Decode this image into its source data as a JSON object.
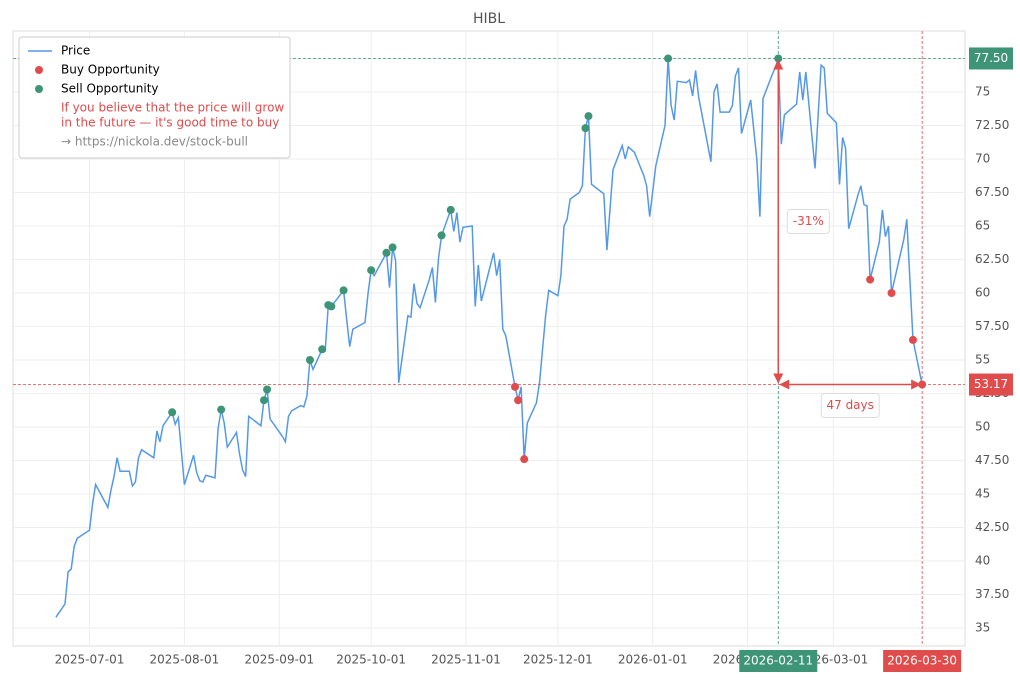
{
  "chart_data": {
    "type": "line",
    "title": "HIBL",
    "xlim": [
      "2025-06-06",
      "2026-04-13"
    ],
    "ylim": [
      33.66,
      79.55
    ],
    "xticks": [
      "2025-07-01",
      "2025-08-01",
      "2025-09-01",
      "2025-10-01",
      "2025-11-01",
      "2025-12-01",
      "2026-01-01",
      "2026-02-01",
      "2026-03-01"
    ],
    "yticks": [
      35,
      {
        "value": 37.5,
        "label": "37.50"
      },
      40,
      {
        "value": 42.5,
        "label": "42.50"
      },
      45,
      {
        "value": 47.5,
        "label": "47.50"
      },
      50,
      {
        "value": 52.5,
        "label": "52.50"
      },
      55,
      {
        "value": 57.5,
        "label": "57.50"
      },
      60,
      {
        "value": 62.5,
        "label": "62.50"
      },
      65,
      {
        "value": 67.5,
        "label": "67.50"
      },
      70,
      {
        "value": 72.5,
        "label": "72.50"
      },
      75,
      {
        "value": 77.5,
        "label": "77.50"
      }
    ],
    "grid": true,
    "legend": "upper left",
    "legend_note": [
      "If you believe that the price will grow",
      "in the future — it's good time to buy"
    ],
    "legend_link": "→ https://nickola.dev/stock-bull",
    "series": [
      {
        "name": "Price",
        "type": "line",
        "color": "#5599e6",
        "x": [
          "2025-06-20",
          "2025-06-23",
          "2025-06-24",
          "2025-06-25",
          "2025-06-26",
          "2025-06-27",
          "2025-07-01",
          "2025-07-02",
          "2025-07-03",
          "2025-07-07",
          "2025-07-08",
          "2025-07-09",
          "2025-07-10",
          "2025-07-11",
          "2025-07-14",
          "2025-07-15",
          "2025-07-16",
          "2025-07-17",
          "2025-07-18",
          "2025-07-22",
          "2025-07-23",
          "2025-07-24",
          "2025-07-25",
          "2025-07-28",
          "2025-07-29",
          "2025-07-30",
          "2025-08-01",
          "2025-08-04",
          "2025-08-05",
          "2025-08-06",
          "2025-08-07",
          "2025-08-08",
          "2025-08-11",
          "2025-08-12",
          "2025-08-13",
          "2025-08-14",
          "2025-08-15",
          "2025-08-18",
          "2025-08-19",
          "2025-08-20",
          "2025-08-21",
          "2025-08-22",
          "2025-08-26",
          "2025-08-27",
          "2025-08-28",
          "2025-08-29",
          "2025-09-02",
          "2025-09-03",
          "2025-09-04",
          "2025-09-05",
          "2025-09-08",
          "2025-09-09",
          "2025-09-10",
          "2025-09-11",
          "2025-09-12",
          "2025-09-15",
          "2025-09-16",
          "2025-09-17",
          "2025-09-18",
          "2025-09-22",
          "2025-09-23",
          "2025-09-24",
          "2025-09-25",
          "2025-09-29",
          "2025-09-30",
          "2025-10-01",
          "2025-10-02",
          "2025-10-06",
          "2025-10-07",
          "2025-10-08",
          "2025-10-09",
          "2025-10-10",
          "2025-10-13",
          "2025-10-14",
          "2025-10-15",
          "2025-10-16",
          "2025-10-17",
          "2025-10-20",
          "2025-10-21",
          "2025-10-22",
          "2025-10-23",
          "2025-10-24",
          "2025-10-27",
          "2025-10-28",
          "2025-10-29",
          "2025-10-30",
          "2025-10-31",
          "2025-11-03",
          "2025-11-04",
          "2025-11-05",
          "2025-11-06",
          "2025-11-07",
          "2025-11-10",
          "2025-11-11",
          "2025-11-12",
          "2025-11-13",
          "2025-11-14",
          "2025-11-17",
          "2025-11-18",
          "2025-11-19",
          "2025-11-20",
          "2025-11-21",
          "2025-11-24",
          "2025-11-25",
          "2025-11-27",
          "2025-11-28",
          "2025-12-01",
          "2025-12-02",
          "2025-12-03",
          "2025-12-04",
          "2025-12-05",
          "2025-12-08",
          "2025-12-09",
          "2025-12-10",
          "2025-12-11",
          "2025-12-12",
          "2025-12-16",
          "2025-12-17",
          "2025-12-19",
          "2025-12-22",
          "2025-12-23",
          "2025-12-24",
          "2025-12-26",
          "2025-12-29",
          "2025-12-30",
          "2025-12-31",
          "2026-01-02",
          "2026-01-05",
          "2026-01-06",
          "2026-01-07",
          "2026-01-08",
          "2026-01-09",
          "2026-01-12",
          "2026-01-13",
          "2026-01-14",
          "2026-01-15",
          "2026-01-16",
          "2026-01-20",
          "2026-01-21",
          "2026-01-22",
          "2026-01-23",
          "2026-01-26",
          "2026-01-27",
          "2026-01-28",
          "2026-01-29",
          "2026-01-30",
          "2026-02-02",
          "2026-02-04",
          "2026-02-05",
          "2026-02-06",
          "2026-02-09",
          "2026-02-10",
          "2026-02-11",
          "2026-02-12",
          "2026-02-13",
          "2026-02-17",
          "2026-02-18",
          "2026-02-19",
          "2026-02-20",
          "2026-02-23",
          "2026-02-25",
          "2026-02-26",
          "2026-02-27",
          "2026-03-02",
          "2026-03-03",
          "2026-03-04",
          "2026-03-05",
          "2026-03-06",
          "2026-03-09",
          "2026-03-10",
          "2026-03-11",
          "2026-03-12",
          "2026-03-13",
          "2026-03-16",
          "2026-03-17",
          "2026-03-18",
          "2026-03-19",
          "2026-03-20",
          "2026-03-23",
          "2026-03-24",
          "2026-03-25",
          "2026-03-27",
          "2026-03-30"
        ],
        "values": [
          35.8,
          36.8,
          39.2,
          39.4,
          41.1,
          41.7,
          42.3,
          44.3,
          45.7,
          44.0,
          45.3,
          46.3,
          47.7,
          46.7,
          46.7,
          45.6,
          45.9,
          47.7,
          48.3,
          47.7,
          49.7,
          48.9,
          50.1,
          51.1,
          50.2,
          50.7,
          45.7,
          47.9,
          46.6,
          46.0,
          45.9,
          46.4,
          46.2,
          49.9,
          51.3,
          50.3,
          48.5,
          49.6,
          48.0,
          46.8,
          46.3,
          50.8,
          50.1,
          52.0,
          52.8,
          50.6,
          49.3,
          48.9,
          50.8,
          51.2,
          51.6,
          51.5,
          52.3,
          55.0,
          54.3,
          55.8,
          55.7,
          59.1,
          59.0,
          60.2,
          58.0,
          56.0,
          57.3,
          57.8,
          60.0,
          61.7,
          61.3,
          63.0,
          60.4,
          63.4,
          62.4,
          53.3,
          58.3,
          58.2,
          60.7,
          59.2,
          58.9,
          61.0,
          61.9,
          59.3,
          62.6,
          64.3,
          66.2,
          64.6,
          66.0,
          63.8,
          64.9,
          65.0,
          59.0,
          62.1,
          59.4,
          60.3,
          63.0,
          61.3,
          62.5,
          57.3,
          56.8,
          53.0,
          52.0,
          53.0,
          47.6,
          50.3,
          51.8,
          53.3,
          58.3,
          60.2,
          59.8,
          61.3,
          65.0,
          65.5,
          67.0,
          67.5,
          68.0,
          72.3,
          73.2,
          68.1,
          67.4,
          63.2,
          69.2,
          71.0,
          70.0,
          70.9,
          70.5,
          68.8,
          68.0,
          65.7,
          69.5,
          72.5,
          77.5,
          74.0,
          72.9,
          75.8,
          75.7,
          75.9,
          74.7,
          76.6,
          74.6,
          69.8,
          75.0,
          75.6,
          73.5,
          73.5,
          74.0,
          76.2,
          76.8,
          71.9,
          74.4,
          70.0,
          65.7,
          74.5,
          76.3,
          76.8,
          77.5,
          71.1,
          73.3,
          74.1,
          76.5,
          74.4,
          76.5,
          69.3,
          77.0,
          76.8,
          73.4,
          72.7,
          68.1,
          71.6,
          70.8,
          64.8,
          67.3,
          68.0,
          66.6,
          66.5,
          61.0,
          63.8,
          66.2,
          64.2,
          65.0,
          60.0,
          63.0,
          64.0,
          65.5,
          56.5,
          53.17
        ]
      },
      {
        "name": "Buy Opportunity",
        "type": "scatter",
        "color": "#e04b4b",
        "x": [
          "2025-11-17",
          "2025-11-18",
          "2025-11-20",
          "2026-03-13",
          "2026-03-20",
          "2026-03-27",
          "2026-03-30"
        ],
        "values": [
          53.0,
          52.0,
          47.6,
          61.0,
          60.0,
          56.5,
          53.17
        ]
      },
      {
        "name": "Sell Opportunity",
        "type": "scatter",
        "color": "#3d9477",
        "x": [
          "2025-07-28",
          "2025-08-13",
          "2025-08-27",
          "2025-08-28",
          "2025-09-11",
          "2025-09-15",
          "2025-09-17",
          "2025-09-18",
          "2025-09-22",
          "2025-10-01",
          "2025-10-06",
          "2025-10-08",
          "2025-10-24",
          "2025-10-27",
          "2025-12-10",
          "2025-12-11",
          "2026-01-06",
          "2026-02-11"
        ],
        "values": [
          51.1,
          51.3,
          52.0,
          52.8,
          55.0,
          55.8,
          59.1,
          59.0,
          60.2,
          61.7,
          63.0,
          63.4,
          64.3,
          66.2,
          72.3,
          73.2,
          77.5,
          77.5
        ]
      }
    ],
    "y_reference_lines": [
      {
        "value": 77.5,
        "label": "77.50",
        "color": "#3d9477"
      },
      {
        "value": 53.17,
        "label": "53.17",
        "color": "#e04b4b"
      }
    ],
    "x_reference_lines": [
      {
        "value": "2026-02-11",
        "color": "#3d9477"
      },
      {
        "value": "2026-03-30",
        "color": "#e04b4b"
      }
    ],
    "change_label": "-31%",
    "duration_label": "47 days",
    "annotation_color": "#e04b4b"
  }
}
